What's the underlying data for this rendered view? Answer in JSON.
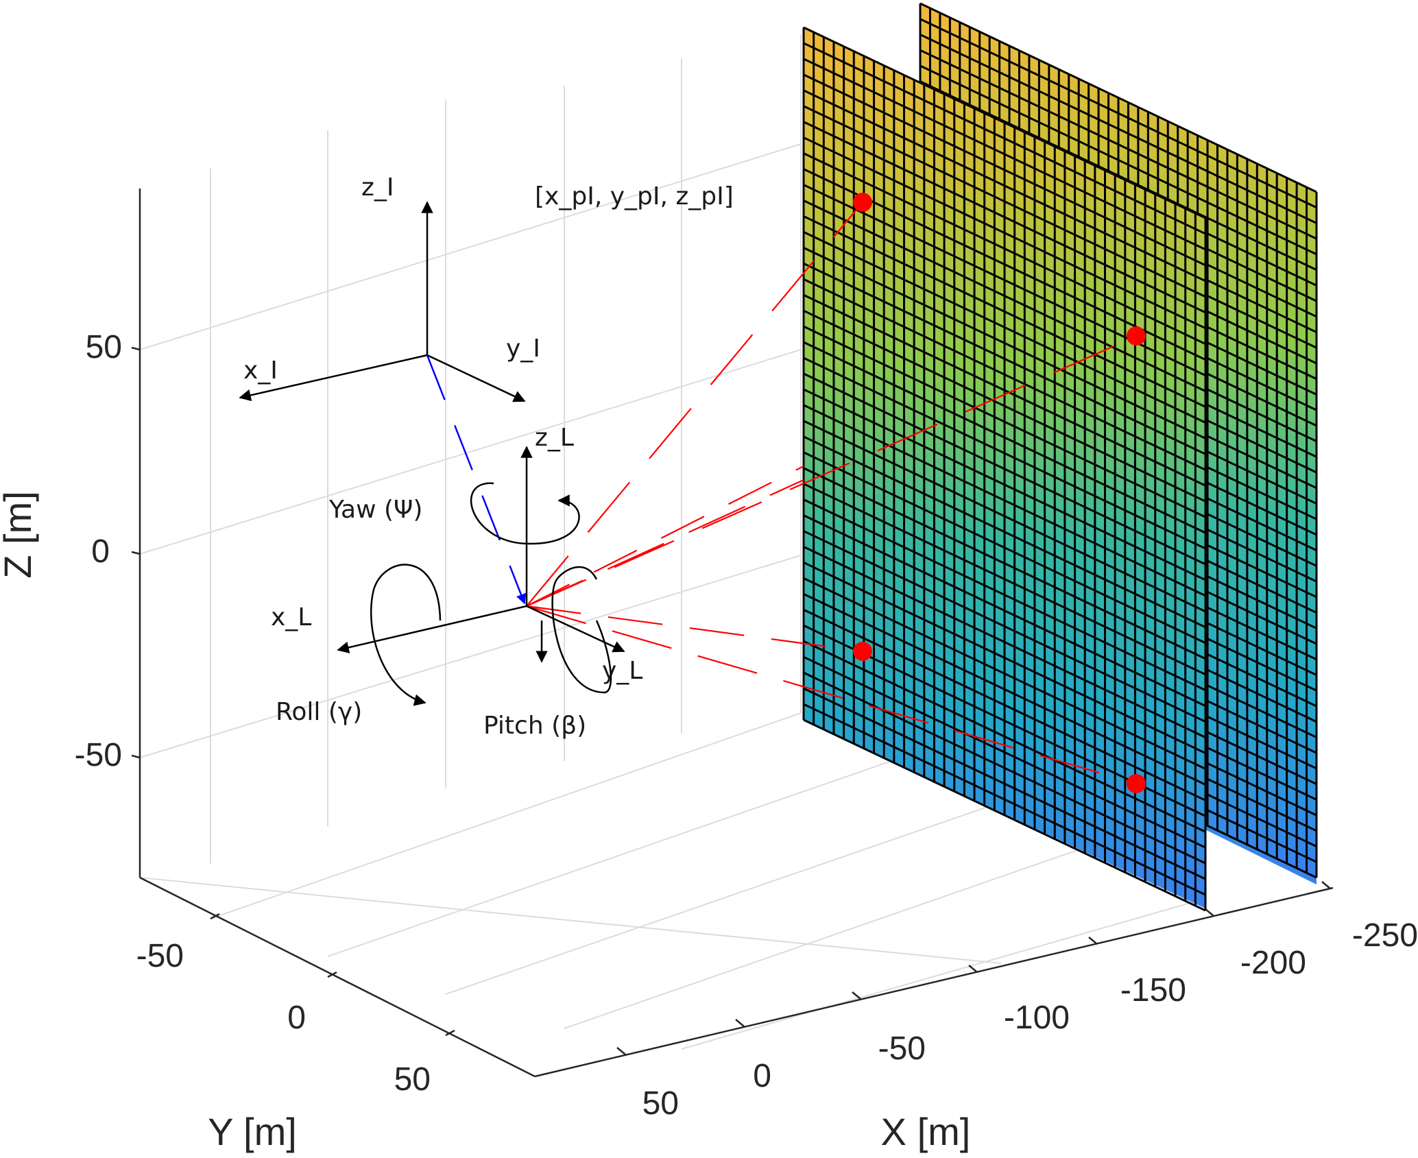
{
  "axes": {
    "x_label": "X [m]",
    "y_label": "Y [m]",
    "z_label": "Z [m]",
    "x_ticks": [
      "-250",
      "-200",
      "-150",
      "-100",
      "-50",
      "0",
      "50"
    ],
    "y_ticks": [
      "-50",
      "0",
      "50"
    ],
    "z_ticks": [
      "50",
      "0",
      "-50"
    ]
  },
  "frames": {
    "inertial": {
      "x": "x_I",
      "y": "y_I",
      "z": "z_I"
    },
    "lidar": {
      "x": "x_L",
      "y": "y_L",
      "z": "z_L"
    }
  },
  "rotations": {
    "yaw": "Yaw (Ψ)",
    "roll": "Roll (γ)",
    "pitch": "Pitch (β)"
  },
  "point_label": "[x_pI, y_pI, z_pI]",
  "colors": {
    "ray": "#ff0000",
    "offset_vector": "#0000ff",
    "surface_top": "#f2b83a",
    "surface_mid": "#2fb4a0",
    "surface_bottom": "#3a80f0",
    "grid": "#dcdcdc",
    "point": "#ff0000"
  }
}
